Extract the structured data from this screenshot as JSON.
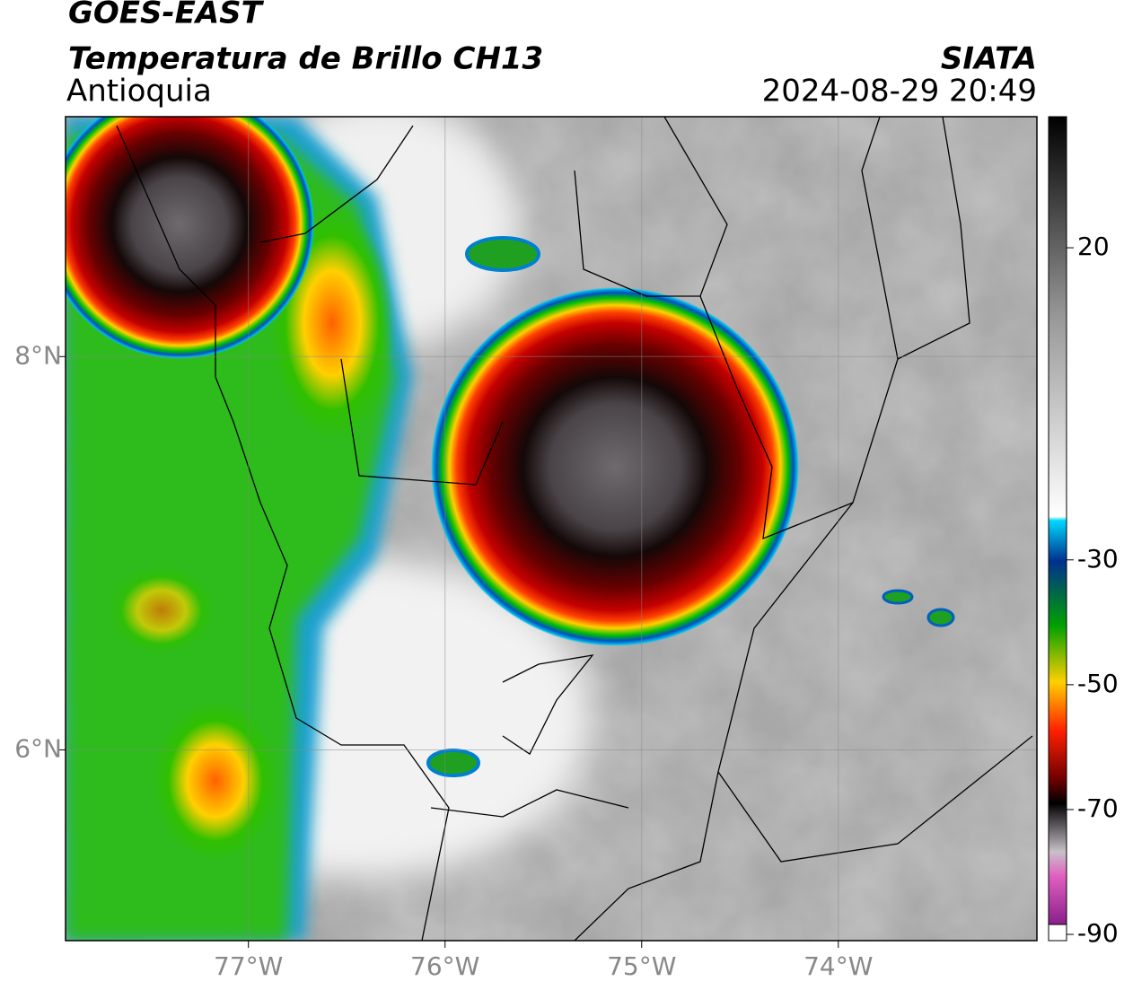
{
  "header": {
    "title": "GOES-EAST",
    "subtitle": "Temperatura de Brillo CH13",
    "region": "Antioquia",
    "source": "SIATA",
    "timestamp": "2024-08-29 20:49"
  },
  "map": {
    "xlim": [
      -77.93,
      -72.99
    ],
    "ylim": [
      5.03,
      9.22
    ],
    "xticks": [
      {
        "value": -77,
        "label": "77°W"
      },
      {
        "value": -76,
        "label": "76°W"
      },
      {
        "value": -75,
        "label": "75°W"
      },
      {
        "value": -74,
        "label": "74°W"
      }
    ],
    "yticks": [
      {
        "value": 8,
        "label": "8°N"
      },
      {
        "value": 6,
        "label": "6°N"
      }
    ],
    "grid": true
  },
  "colorbar": {
    "lim": [
      -91,
      41
    ],
    "ticks": [
      20,
      -30,
      -50,
      -70,
      -90
    ]
  }
}
